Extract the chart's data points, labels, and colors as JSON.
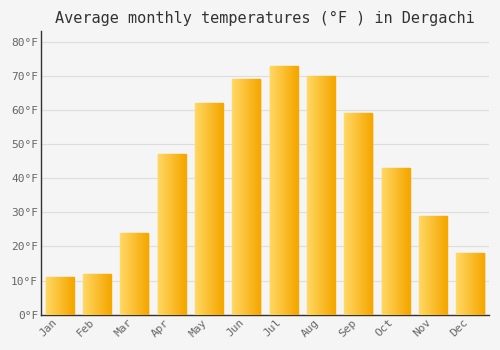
{
  "title": "Average monthly temperatures (°F ) in Dergachi",
  "months": [
    "Jan",
    "Feb",
    "Mar",
    "Apr",
    "May",
    "Jun",
    "Jul",
    "Aug",
    "Sep",
    "Oct",
    "Nov",
    "Dec"
  ],
  "values": [
    11,
    12,
    24,
    47,
    62,
    69,
    73,
    70,
    59,
    43,
    29,
    18
  ],
  "bar_color_dark": "#F5A800",
  "bar_color_light": "#FFD966",
  "ylim": [
    0,
    83
  ],
  "yticks": [
    0,
    10,
    20,
    30,
    40,
    50,
    60,
    70,
    80
  ],
  "ytick_labels": [
    "0°F",
    "10°F",
    "20°F",
    "30°F",
    "40°F",
    "50°F",
    "60°F",
    "70°F",
    "80°F"
  ],
  "background_color": "#F5F5F5",
  "plot_bg_color": "#F5F5F5",
  "grid_color": "#DDDDDD",
  "title_fontsize": 11,
  "tick_fontsize": 8,
  "font_family": "monospace",
  "bar_width": 0.75
}
